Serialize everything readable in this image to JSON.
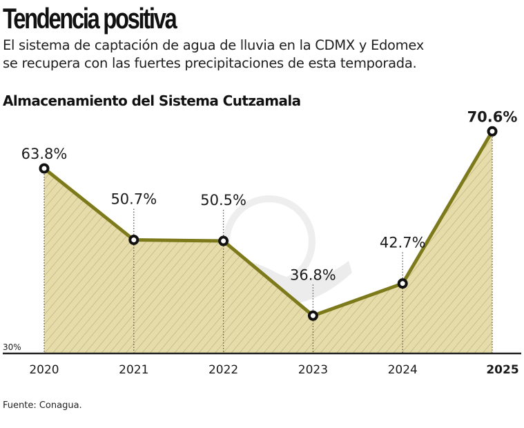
{
  "header": {
    "title": "Tendencia positiva",
    "subtitle_line1": "El sistema de captación de agua de lluvia en la CDMX y Edomex",
    "subtitle_line2": "se recupera con las fuertes precipitaciones de esta temporada."
  },
  "footer": {
    "source": "Fuente: Conagua."
  },
  "colors": {
    "line": "#7d7a1c",
    "fill": "#e6dcaa",
    "hatch": "#b8ab78",
    "marker": "#111111",
    "axis": "#222222"
  },
  "chart_data": {
    "type": "area",
    "title": "Almacenamiento del Sistema Cutzamala",
    "xlabel": "",
    "ylabel": "",
    "categories": [
      "2020",
      "2021",
      "2022",
      "2023",
      "2024",
      "2025"
    ],
    "values": [
      63.8,
      50.7,
      50.5,
      36.8,
      42.7,
      70.6
    ],
    "data_labels": [
      "63.8%",
      "50.7%",
      "50.5%",
      "36.8%",
      "42.7%",
      "70.6%"
    ],
    "highlight_index": 5,
    "ylim": [
      30,
      72
    ],
    "y_ticks": [
      {
        "value": 30,
        "label": "30%"
      }
    ],
    "grid": false,
    "legend": "none",
    "unit": "%"
  }
}
